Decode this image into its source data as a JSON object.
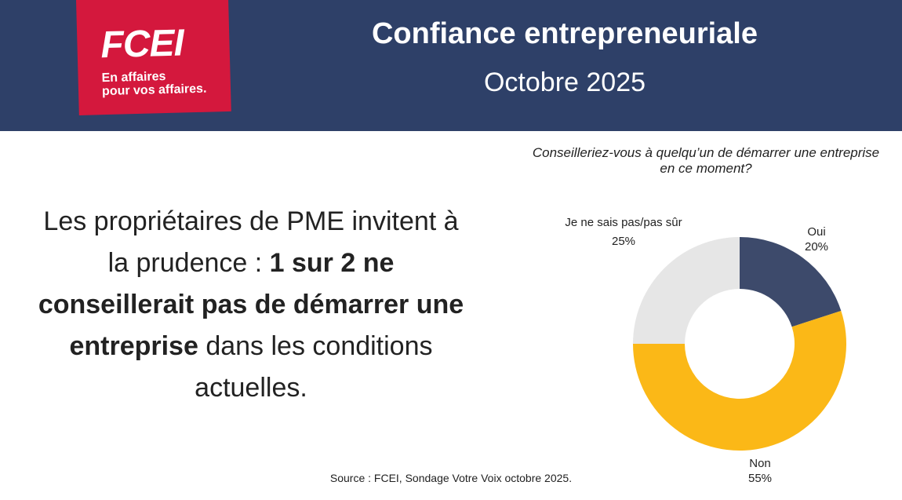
{
  "brand": {
    "logo_text": "FCEI",
    "tagline_line1": "En affaires",
    "tagline_line2": "pour vos affaires."
  },
  "header": {
    "title": "Confiance entrepreneuriale",
    "subtitle": "Octobre 2025"
  },
  "headline": {
    "part1": "Les propriétaires de PME invitent à la prudence : ",
    "bold": "1 sur 2 ne conseillerait pas de démarrer une entreprise",
    "part2": " dans les conditions actuelles."
  },
  "source": "Source : FCEI, Sondage Votre Voix octobre 2025.",
  "colors": {
    "header_bg": "#2e4068",
    "logo_bg": "#d4183d"
  },
  "chart_data": {
    "type": "pie",
    "donut": true,
    "title": "Conseilleriez-vous à quelqu’un de démarrer une entreprise en ce moment?",
    "unit": "%",
    "slices": [
      {
        "label": "Oui",
        "value": 20,
        "value_label": "20%",
        "color": "#3d4a6b"
      },
      {
        "label": "Non",
        "value": 55,
        "value_label": "55%",
        "color": "#fbb817"
      },
      {
        "label": "Je ne sais pas/pas sûr",
        "value": 25,
        "value_label": "25%",
        "color": "#e6e6e6"
      }
    ],
    "start": "12 o'clock",
    "direction": "clockwise"
  }
}
